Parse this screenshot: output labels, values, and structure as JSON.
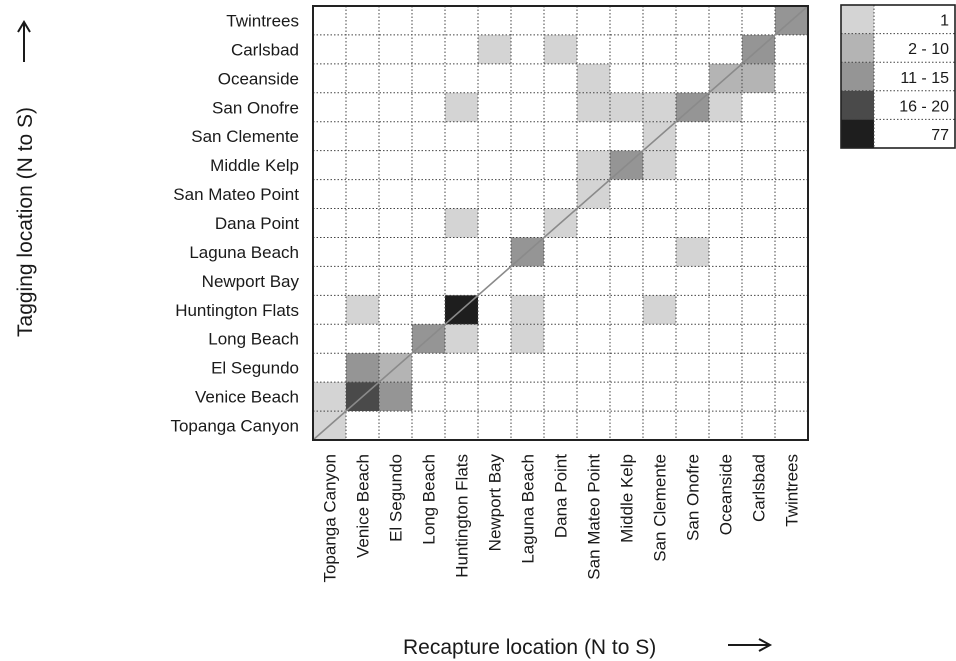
{
  "chart_data": {
    "type": "heatmap",
    "title": "",
    "xlabel": "Recapture location (N to S)",
    "ylabel": "Tagging location (N to S)",
    "x_categories": [
      "Topanga Canyon",
      "Venice Beach",
      "El Segundo",
      "Long Beach",
      "Huntington Flats",
      "Newport Bay",
      "Laguna Beach",
      "Dana Point",
      "San Mateo Point",
      "Middle Kelp",
      "San Clemente",
      "San Onofre",
      "Oceanside",
      "Carlsbad",
      "Twintrees"
    ],
    "y_categories": [
      "Topanga Canyon",
      "Venice Beach",
      "El Segundo",
      "Long Beach",
      "Huntington Flats",
      "Newport Bay",
      "Laguna Beach",
      "Dana Point",
      "San Mateo Point",
      "Middle Kelp",
      "San Clemente",
      "San Onofre",
      "Oceanside",
      "Carlsbad",
      "Twintrees"
    ],
    "legend": {
      "placement": "top-right",
      "bins": [
        {
          "label": "1",
          "color": "#d4d4d4"
        },
        {
          "label": "2 - 10",
          "color": "#b4b4b4"
        },
        {
          "label": "11 - 15",
          "color": "#959595"
        },
        {
          "label": "16 - 20",
          "color": "#4a4a4a"
        },
        {
          "label": "77",
          "color": "#1e1e1e"
        }
      ]
    },
    "diagonal_line": true,
    "cells": [
      {
        "tag": "Topanga Canyon",
        "recap": "Topanga Canyon",
        "bin": "1"
      },
      {
        "tag": "Venice Beach",
        "recap": "Topanga Canyon",
        "bin": "1"
      },
      {
        "tag": "Venice Beach",
        "recap": "Venice Beach",
        "bin": "16 - 20"
      },
      {
        "tag": "Venice Beach",
        "recap": "El Segundo",
        "bin": "11 - 15"
      },
      {
        "tag": "El Segundo",
        "recap": "Venice Beach",
        "bin": "11 - 15"
      },
      {
        "tag": "El Segundo",
        "recap": "El Segundo",
        "bin": "2 - 10"
      },
      {
        "tag": "Long Beach",
        "recap": "Long Beach",
        "bin": "11 - 15"
      },
      {
        "tag": "Long Beach",
        "recap": "Huntington Flats",
        "bin": "1"
      },
      {
        "tag": "Long Beach",
        "recap": "Laguna Beach",
        "bin": "1"
      },
      {
        "tag": "Huntington Flats",
        "recap": "Venice Beach",
        "bin": "1"
      },
      {
        "tag": "Huntington Flats",
        "recap": "Huntington Flats",
        "bin": "77"
      },
      {
        "tag": "Huntington Flats",
        "recap": "Laguna Beach",
        "bin": "1"
      },
      {
        "tag": "Huntington Flats",
        "recap": "San Clemente",
        "bin": "1"
      },
      {
        "tag": "Laguna Beach",
        "recap": "Laguna Beach",
        "bin": "11 - 15"
      },
      {
        "tag": "Laguna Beach",
        "recap": "San Onofre",
        "bin": "1"
      },
      {
        "tag": "Dana Point",
        "recap": "Huntington Flats",
        "bin": "1"
      },
      {
        "tag": "Dana Point",
        "recap": "Dana Point",
        "bin": "1"
      },
      {
        "tag": "San Mateo Point",
        "recap": "San Mateo Point",
        "bin": "1"
      },
      {
        "tag": "Middle Kelp",
        "recap": "San Mateo Point",
        "bin": "1"
      },
      {
        "tag": "Middle Kelp",
        "recap": "Middle Kelp",
        "bin": "11 - 15"
      },
      {
        "tag": "Middle Kelp",
        "recap": "San Clemente",
        "bin": "1"
      },
      {
        "tag": "San Clemente",
        "recap": "San Clemente",
        "bin": "1"
      },
      {
        "tag": "San Onofre",
        "recap": "Huntington Flats",
        "bin": "1"
      },
      {
        "tag": "San Onofre",
        "recap": "San Mateo Point",
        "bin": "1"
      },
      {
        "tag": "San Onofre",
        "recap": "Middle Kelp",
        "bin": "1"
      },
      {
        "tag": "San Onofre",
        "recap": "San Clemente",
        "bin": "1"
      },
      {
        "tag": "San Onofre",
        "recap": "San Onofre",
        "bin": "11 - 15"
      },
      {
        "tag": "San Onofre",
        "recap": "Oceanside",
        "bin": "1"
      },
      {
        "tag": "Oceanside",
        "recap": "San Mateo Point",
        "bin": "1"
      },
      {
        "tag": "Oceanside",
        "recap": "Oceanside",
        "bin": "2 - 10"
      },
      {
        "tag": "Oceanside",
        "recap": "Carlsbad",
        "bin": "2 - 10"
      },
      {
        "tag": "Carlsbad",
        "recap": "Newport Bay",
        "bin": "1"
      },
      {
        "tag": "Carlsbad",
        "recap": "Dana Point",
        "bin": "1"
      },
      {
        "tag": "Carlsbad",
        "recap": "Carlsbad",
        "bin": "11 - 15"
      },
      {
        "tag": "Twintrees",
        "recap": "Twintrees",
        "bin": "11 - 15"
      }
    ]
  }
}
